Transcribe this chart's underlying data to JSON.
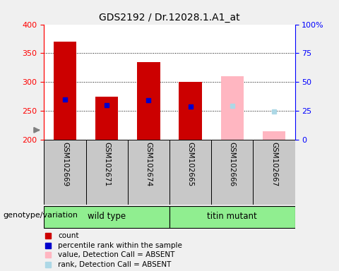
{
  "title": "GDS2192 / Dr.12028.1.A1_at",
  "samples": [
    "GSM102669",
    "GSM102671",
    "GSM102674",
    "GSM102665",
    "GSM102666",
    "GSM102667"
  ],
  "count_values": [
    370,
    275,
    335,
    300,
    310,
    215
  ],
  "rank_values": [
    270,
    260,
    268,
    257,
    258,
    249
  ],
  "absent_flags": [
    false,
    false,
    false,
    false,
    true,
    true
  ],
  "ylim_left": [
    200,
    400
  ],
  "ylim_right": [
    0,
    100
  ],
  "yticks_left": [
    200,
    250,
    300,
    350,
    400
  ],
  "yticks_right": [
    0,
    25,
    50,
    75,
    100
  ],
  "hgrid_vals": [
    250,
    300,
    350
  ],
  "groups": [
    {
      "label": "wild type",
      "start": 0,
      "end": 2
    },
    {
      "label": "titin mutant",
      "start": 3,
      "end": 5
    }
  ],
  "group_color": "#90EE90",
  "bar_color_present": "#CC0000",
  "bar_color_absent": "#FFB6C1",
  "rank_color_present": "#0000CC",
  "rank_color_absent": "#ADD8E6",
  "sample_bg_color": "#C8C8C8",
  "plot_bg_color": "#FFFFFF",
  "fig_bg_color": "#F0F0F0",
  "genotype_label": "genotype/variation",
  "legend_items": [
    {
      "label": "count",
      "color": "#CC0000"
    },
    {
      "label": "percentile rank within the sample",
      "color": "#0000CC"
    },
    {
      "label": "value, Detection Call = ABSENT",
      "color": "#FFB6C1"
    },
    {
      "label": "rank, Detection Call = ABSENT",
      "color": "#ADD8E6"
    }
  ]
}
